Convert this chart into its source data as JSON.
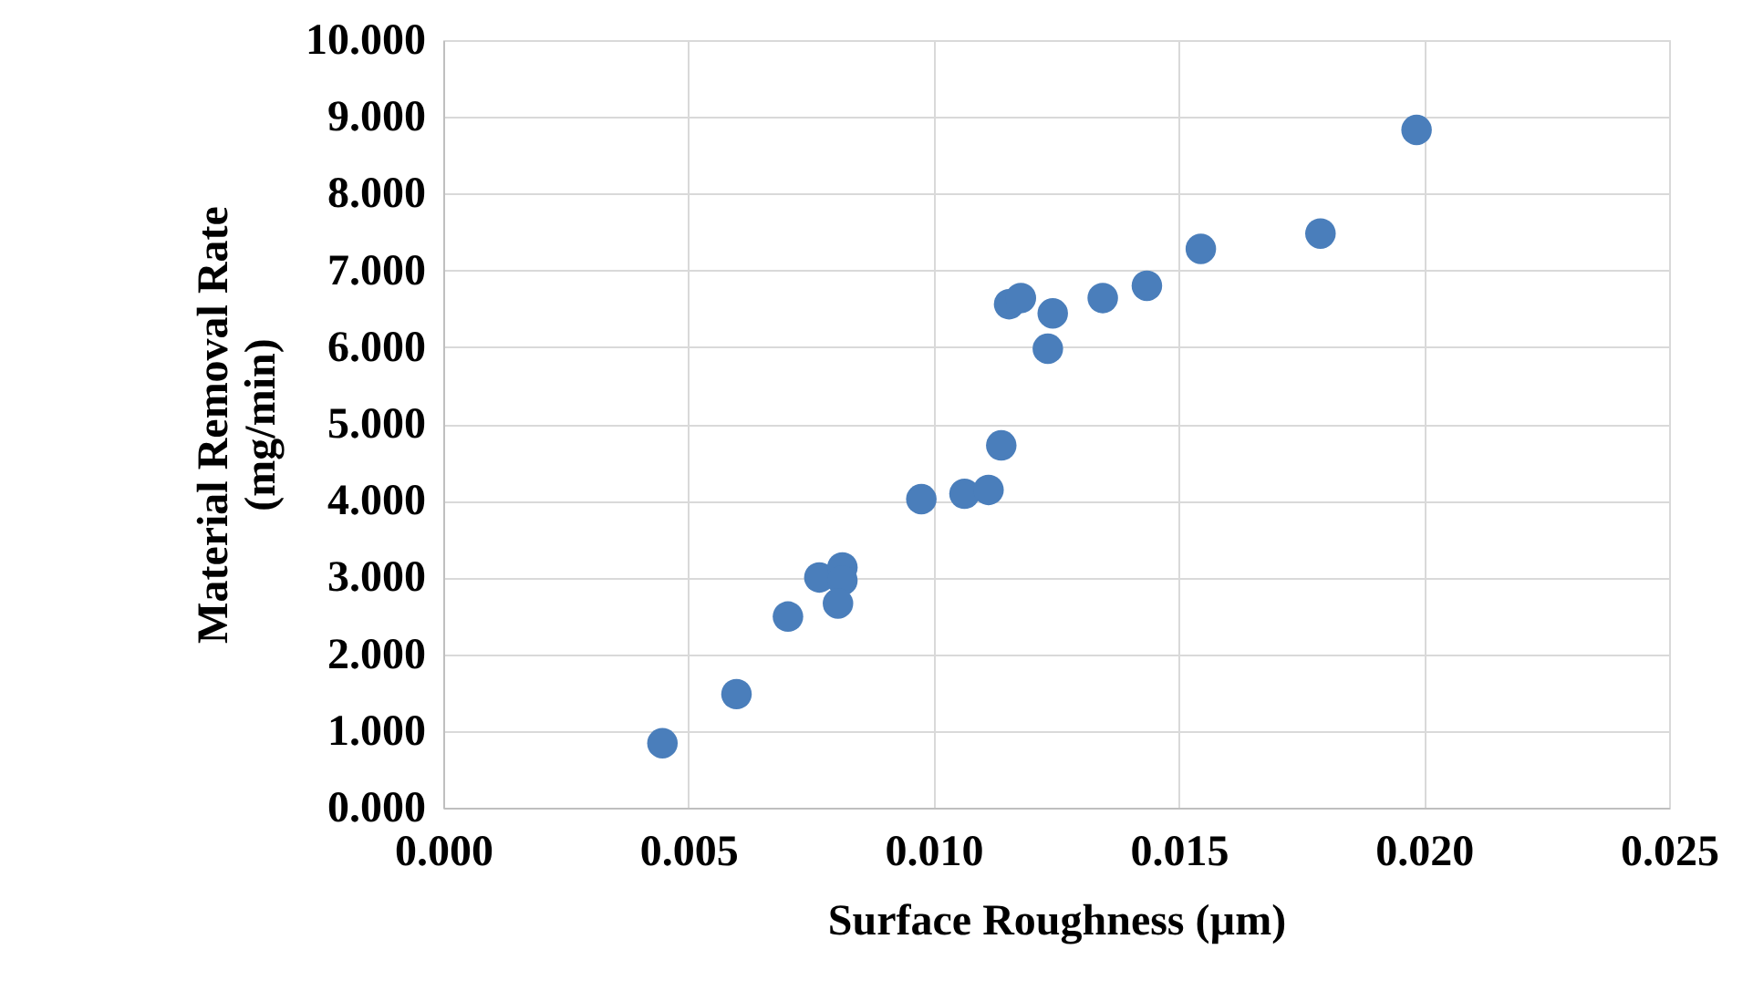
{
  "chart_data": {
    "type": "scatter",
    "xlabel": "Surface Roughness (µm)",
    "ylabel": "Material Removal Rate\n(mg/min)",
    "x": [
      0.00447,
      0.00598,
      0.00703,
      0.00767,
      0.00814,
      0.00814,
      0.00805,
      0.00975,
      0.01063,
      0.01112,
      0.01138,
      0.01233,
      0.01243,
      0.01154,
      0.01178,
      0.01345,
      0.01435,
      0.01545,
      0.01789,
      0.01985
    ],
    "series": [
      {
        "color": "#4a7ebb",
        "values": [
          0.84,
          1.48,
          2.49,
          3.0,
          3.13,
          2.96,
          2.66,
          4.02,
          4.09,
          4.14,
          4.72,
          5.98,
          6.44,
          6.56,
          6.64,
          6.64,
          6.8,
          7.28,
          7.48,
          8.83
        ]
      }
    ],
    "xlim": [
      0,
      0.025
    ],
    "xticks": [
      {
        "value": 0,
        "label": "0.000"
      },
      {
        "value": 0.005,
        "label": "0.005"
      },
      {
        "value": 0.01,
        "label": "0.010"
      },
      {
        "value": 0.015,
        "label": "0.015"
      },
      {
        "value": 0.02,
        "label": "0.020"
      },
      {
        "value": 0.025,
        "label": "0.025"
      }
    ],
    "ylim": [
      0,
      10
    ],
    "yticks": [
      {
        "value": 0,
        "label": "0.000"
      },
      {
        "value": 1,
        "label": "1.000"
      },
      {
        "value": 2,
        "label": "2.000"
      },
      {
        "value": 3,
        "label": "3.000"
      },
      {
        "value": 4,
        "label": "4.000"
      },
      {
        "value": 5,
        "label": "5.000"
      },
      {
        "value": 6,
        "label": "6.000"
      },
      {
        "value": 7,
        "label": "7.000"
      },
      {
        "value": 8,
        "label": "8.000"
      },
      {
        "value": 9,
        "label": "9.000"
      },
      {
        "value": 10,
        "label": "10.000"
      }
    ],
    "grid": true,
    "legend": false,
    "marker": "circle"
  }
}
